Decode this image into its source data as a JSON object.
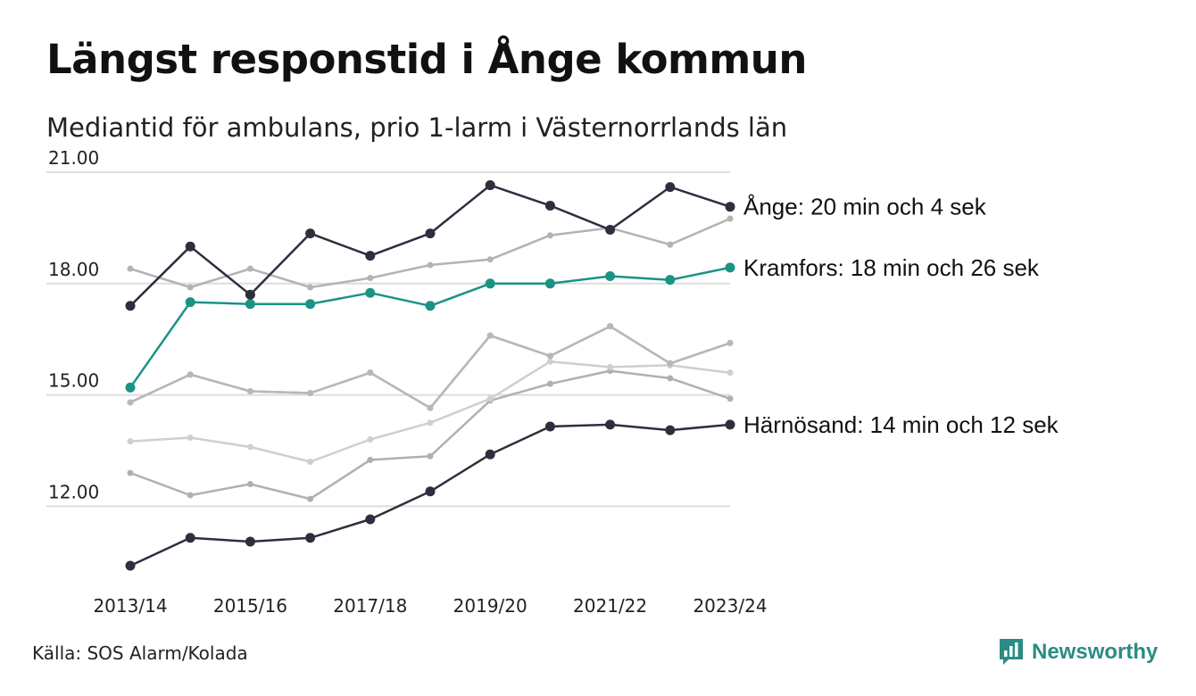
{
  "header": {
    "title": "Längst responstid i Ånge kommun",
    "subtitle": "Mediantid för ambulans, prio 1-larm i Västernorrlands län"
  },
  "footer": {
    "source": "Källa: SOS Alarm/Kolada",
    "brand": "Newsworthy"
  },
  "colors": {
    "highlight_dark": "#2f2e3e",
    "highlight_teal": "#1a9386",
    "context_lines": [
      "#b3b3b3",
      "#a9a9a9",
      "#b0b0b0",
      "#cfcfcf",
      "#b8b8b8"
    ],
    "grid": "#dddddd",
    "brand": "#2a8c84"
  },
  "chart_data": {
    "type": "line",
    "title": "Längst responstid i Ånge kommun",
    "subtitle": "Mediantid för ambulans, prio 1-larm i Västernorrlands län",
    "xlabel": "",
    "ylabel": "",
    "x": [
      "2013/14",
      "2014/15",
      "2015/16",
      "2016/17",
      "2017/18",
      "2018/19",
      "2019/20",
      "2020/21",
      "2021/22",
      "2022/23",
      "2023/24"
    ],
    "x_tick_labels": [
      "2013/14",
      "2015/16",
      "2017/18",
      "2019/20",
      "2021/22",
      "2023/24"
    ],
    "y_ticks": [
      "12.00",
      "15.00",
      "18.00",
      "21.00"
    ],
    "ylim": [
      10.4,
      21.0
    ],
    "grid": true,
    "series": [
      {
        "style": "context",
        "values": [
          18.4,
          17.9,
          18.4,
          17.9,
          18.15,
          18.5,
          18.65,
          19.3,
          19.5,
          19.05,
          19.75
        ]
      },
      {
        "style": "context",
        "values": [
          14.8,
          15.55,
          15.1,
          15.05,
          15.6,
          14.65,
          16.6,
          16.05,
          16.85,
          15.85,
          16.4
        ]
      },
      {
        "style": "context",
        "values": [
          12.9,
          12.3,
          12.6,
          12.2,
          13.25,
          13.35,
          14.85,
          15.3,
          15.65,
          15.45,
          14.9
        ]
      },
      {
        "style": "context",
        "values": [
          13.75,
          13.85,
          13.6,
          13.2,
          13.8,
          14.25,
          14.9,
          15.9,
          15.75,
          15.8,
          15.6
        ]
      },
      {
        "style": "context",
        "values": [
          14.8,
          15.55,
          15.1,
          15.05,
          15.6,
          14.65,
          16.6,
          16.05,
          16.85,
          15.85,
          16.4
        ]
      },
      {
        "name": "Kramfors",
        "label": "Kramfors: 18 min och 26 sek",
        "style": "teal",
        "values": [
          15.2,
          17.5,
          17.45,
          17.45,
          17.75,
          17.4,
          18.0,
          18.0,
          18.2,
          18.1,
          18.43
        ]
      },
      {
        "name": "Ånge",
        "label": "Ånge: 20 min och 4 sek",
        "style": "dark",
        "values": [
          17.4,
          19.0,
          17.7,
          19.35,
          18.75,
          19.35,
          20.65,
          20.1,
          19.45,
          20.6,
          20.07
        ]
      },
      {
        "name": "Härnösand",
        "label": "Härnösand: 14 min och 12 sek",
        "style": "dark",
        "values": [
          10.4,
          11.15,
          11.05,
          11.15,
          11.65,
          12.4,
          13.4,
          14.15,
          14.2,
          14.05,
          14.2
        ]
      }
    ]
  }
}
